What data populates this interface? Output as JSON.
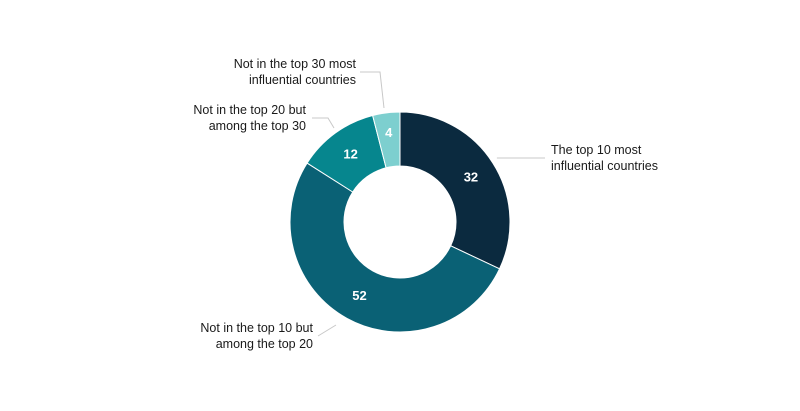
{
  "chart_data": {
    "type": "pie",
    "variant": "donut",
    "title": "",
    "series": [
      {
        "values": [
          32,
          52,
          12,
          4
        ],
        "labels": [
          "The top 10 most influential countries",
          "Not in the top 10 but among the top 20",
          "Not in the top 20 but among the top 30",
          "Not in the top 30 most influential countries"
        ],
        "colors": [
          "#0b2a3f",
          "#0a6175",
          "#06868e",
          "#7dcfcf"
        ]
      }
    ],
    "callouts": [
      [
        "The top 10 most",
        "influential countries"
      ],
      [
        "Not in the top 10 but",
        "among the top 20"
      ],
      [
        "Not in the top 20 but",
        "among the top 30"
      ],
      [
        "Not in the top 30 most",
        "influential countries"
      ]
    ]
  }
}
